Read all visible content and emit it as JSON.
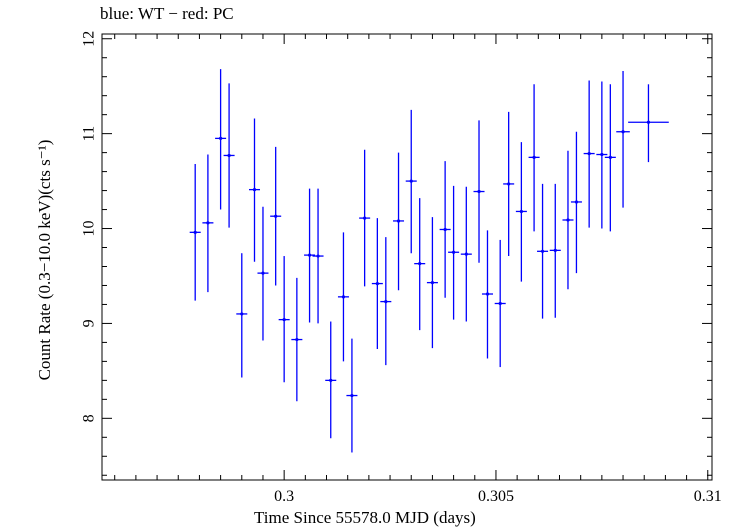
{
  "chart_data": {
    "type": "scatter",
    "title": "blue: WT − red: PC",
    "xlabel": "Time Since 55578.0 MJD (days)",
    "ylabel": "Count Rate (0.3−10.0 keV)(cts s⁻¹)",
    "xlim": [
      0.2957,
      0.3101
    ],
    "ylim": [
      7.35,
      12.05
    ],
    "xticks": [
      0.3,
      0.305,
      0.31
    ],
    "xtick_labels": [
      "0.3",
      "0.305",
      "0.31"
    ],
    "yticks": [
      8,
      9,
      10,
      11,
      12
    ],
    "ytick_labels": [
      "8",
      "9",
      "10",
      "11",
      "12"
    ],
    "grid": false,
    "series": [
      {
        "mode": "WT",
        "color": "#0000ff",
        "points": [
          {
            "x": 0.2979,
            "y": 9.96,
            "xerr": 0.00013,
            "ylo": 9.24,
            "yhi": 10.68
          },
          {
            "x": 0.2982,
            "y": 10.06,
            "xerr": 0.00013,
            "ylo": 9.33,
            "yhi": 10.78
          },
          {
            "x": 0.2985,
            "y": 10.95,
            "xerr": 0.00013,
            "ylo": 10.2,
            "yhi": 11.68
          },
          {
            "x": 0.2987,
            "y": 10.77,
            "xerr": 0.00013,
            "ylo": 10.01,
            "yhi": 11.53
          },
          {
            "x": 0.299,
            "y": 9.1,
            "xerr": 0.00013,
            "ylo": 8.43,
            "yhi": 9.74
          },
          {
            "x": 0.2993,
            "y": 10.41,
            "xerr": 0.00013,
            "ylo": 9.65,
            "yhi": 11.16
          },
          {
            "x": 0.2995,
            "y": 9.53,
            "xerr": 0.00013,
            "ylo": 8.82,
            "yhi": 10.23
          },
          {
            "x": 0.2998,
            "y": 10.13,
            "xerr": 0.00013,
            "ylo": 9.4,
            "yhi": 10.86
          },
          {
            "x": 0.3,
            "y": 9.04,
            "xerr": 0.00013,
            "ylo": 8.38,
            "yhi": 9.71
          },
          {
            "x": 0.3003,
            "y": 8.83,
            "xerr": 0.00013,
            "ylo": 8.18,
            "yhi": 9.48
          },
          {
            "x": 0.3006,
            "y": 9.72,
            "xerr": 0.00013,
            "ylo": 9.01,
            "yhi": 10.42
          },
          {
            "x": 0.3008,
            "y": 9.71,
            "xerr": 0.00013,
            "ylo": 9.0,
            "yhi": 10.42
          },
          {
            "x": 0.3011,
            "y": 8.4,
            "xerr": 0.00013,
            "ylo": 7.79,
            "yhi": 9.02
          },
          {
            "x": 0.3014,
            "y": 9.28,
            "xerr": 0.00013,
            "ylo": 8.6,
            "yhi": 9.96
          },
          {
            "x": 0.3016,
            "y": 8.24,
            "xerr": 0.00013,
            "ylo": 7.64,
            "yhi": 8.84
          },
          {
            "x": 0.3019,
            "y": 10.11,
            "xerr": 0.00013,
            "ylo": 9.39,
            "yhi": 10.83
          },
          {
            "x": 0.3022,
            "y": 9.42,
            "xerr": 0.00013,
            "ylo": 8.73,
            "yhi": 10.11
          },
          {
            "x": 0.3024,
            "y": 9.23,
            "xerr": 0.00013,
            "ylo": 8.56,
            "yhi": 9.91
          },
          {
            "x": 0.3027,
            "y": 10.08,
            "xerr": 0.00013,
            "ylo": 9.35,
            "yhi": 10.8
          },
          {
            "x": 0.303,
            "y": 10.5,
            "xerr": 0.00013,
            "ylo": 9.74,
            "yhi": 11.25
          },
          {
            "x": 0.3032,
            "y": 9.63,
            "xerr": 0.00013,
            "ylo": 8.93,
            "yhi": 10.32
          },
          {
            "x": 0.3035,
            "y": 9.43,
            "xerr": 0.00013,
            "ylo": 8.74,
            "yhi": 10.12
          },
          {
            "x": 0.3038,
            "y": 9.99,
            "xerr": 0.00013,
            "ylo": 9.27,
            "yhi": 10.71
          },
          {
            "x": 0.304,
            "y": 9.75,
            "xerr": 0.00013,
            "ylo": 9.04,
            "yhi": 10.45
          },
          {
            "x": 0.3043,
            "y": 9.73,
            "xerr": 0.00013,
            "ylo": 9.02,
            "yhi": 10.44
          },
          {
            "x": 0.3046,
            "y": 10.39,
            "xerr": 0.00013,
            "ylo": 9.64,
            "yhi": 11.14
          },
          {
            "x": 0.3048,
            "y": 9.31,
            "xerr": 0.00013,
            "ylo": 8.63,
            "yhi": 9.98
          },
          {
            "x": 0.3051,
            "y": 9.21,
            "xerr": 0.00013,
            "ylo": 8.54,
            "yhi": 9.88
          },
          {
            "x": 0.3053,
            "y": 10.47,
            "xerr": 0.00013,
            "ylo": 9.71,
            "yhi": 11.23
          },
          {
            "x": 0.3056,
            "y": 10.18,
            "xerr": 0.00013,
            "ylo": 9.44,
            "yhi": 10.91
          },
          {
            "x": 0.3059,
            "y": 10.75,
            "xerr": 0.00013,
            "ylo": 9.97,
            "yhi": 11.52
          },
          {
            "x": 0.3061,
            "y": 9.76,
            "xerr": 0.00013,
            "ylo": 9.05,
            "yhi": 10.47
          },
          {
            "x": 0.3064,
            "y": 9.77,
            "xerr": 0.00013,
            "ylo": 9.06,
            "yhi": 10.47
          },
          {
            "x": 0.3067,
            "y": 10.09,
            "xerr": 0.00013,
            "ylo": 9.36,
            "yhi": 10.82
          },
          {
            "x": 0.3069,
            "y": 10.28,
            "xerr": 0.00013,
            "ylo": 9.53,
            "yhi": 11.02
          },
          {
            "x": 0.3072,
            "y": 10.79,
            "xerr": 0.00013,
            "ylo": 10.01,
            "yhi": 11.56
          },
          {
            "x": 0.3075,
            "y": 10.78,
            "xerr": 0.00013,
            "ylo": 10.0,
            "yhi": 11.55
          },
          {
            "x": 0.3077,
            "y": 10.75,
            "xerr": 0.00013,
            "ylo": 9.97,
            "yhi": 11.52
          },
          {
            "x": 0.308,
            "y": 11.02,
            "xerr": 0.00016,
            "ylo": 10.22,
            "yhi": 11.66
          },
          {
            "x": 0.3086,
            "y": 11.12,
            "xerr": 0.00048,
            "ylo": 10.7,
            "yhi": 11.52
          }
        ]
      }
    ]
  }
}
